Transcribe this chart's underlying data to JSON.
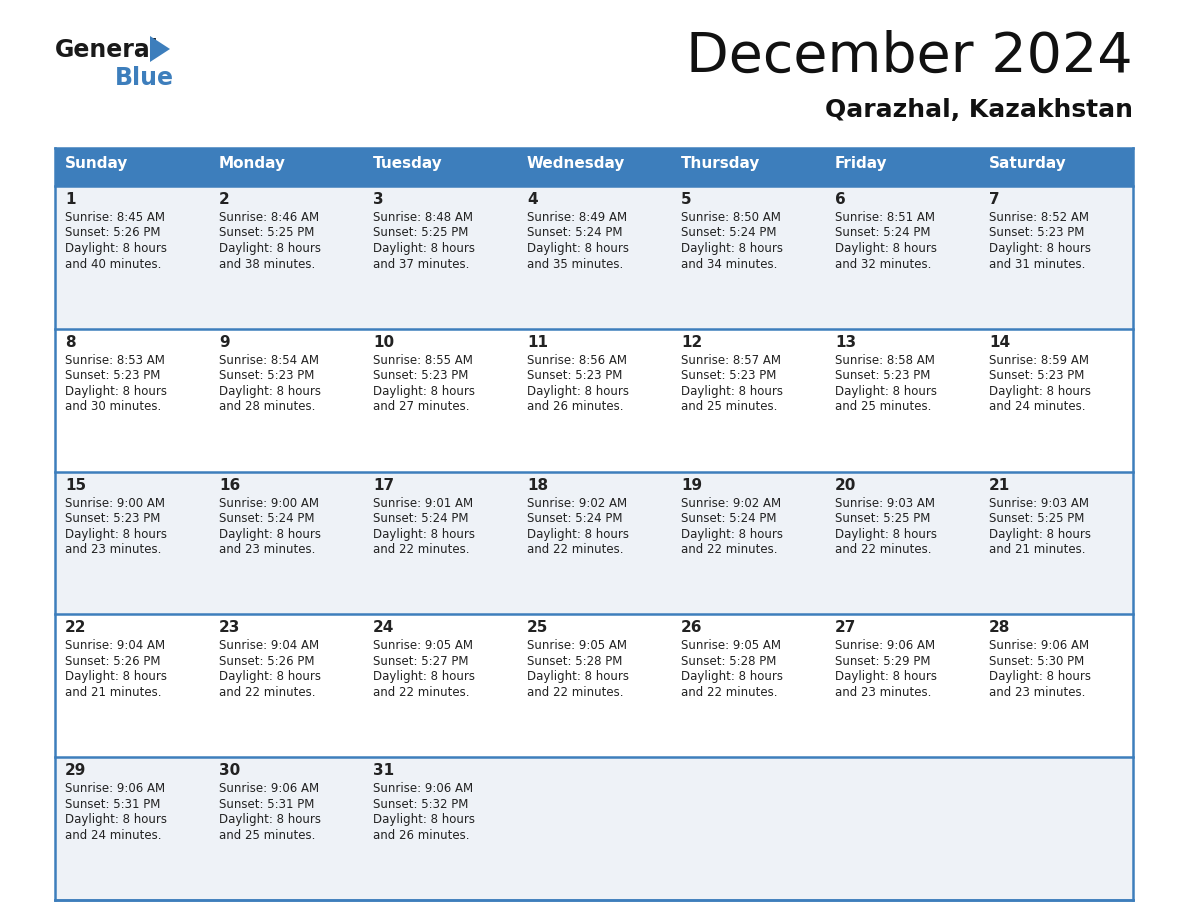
{
  "title": "December 2024",
  "subtitle": "Qarazhal, Kazakhstan",
  "header_color": "#3d7ebc",
  "header_text_color": "#ffffff",
  "cell_bg_light": "#eef2f7",
  "cell_bg_white": "#ffffff",
  "border_color": "#3d7ebc",
  "text_color": "#222222",
  "days_of_week": [
    "Sunday",
    "Monday",
    "Tuesday",
    "Wednesday",
    "Thursday",
    "Friday",
    "Saturday"
  ],
  "weeks": [
    [
      {
        "day": "1",
        "sunrise": "8:45 AM",
        "sunset": "5:26 PM",
        "daylight_hours": 8,
        "daylight_minutes": 40
      },
      {
        "day": "2",
        "sunrise": "8:46 AM",
        "sunset": "5:25 PM",
        "daylight_hours": 8,
        "daylight_minutes": 38
      },
      {
        "day": "3",
        "sunrise": "8:48 AM",
        "sunset": "5:25 PM",
        "daylight_hours": 8,
        "daylight_minutes": 37
      },
      {
        "day": "4",
        "sunrise": "8:49 AM",
        "sunset": "5:24 PM",
        "daylight_hours": 8,
        "daylight_minutes": 35
      },
      {
        "day": "5",
        "sunrise": "8:50 AM",
        "sunset": "5:24 PM",
        "daylight_hours": 8,
        "daylight_minutes": 34
      },
      {
        "day": "6",
        "sunrise": "8:51 AM",
        "sunset": "5:24 PM",
        "daylight_hours": 8,
        "daylight_minutes": 32
      },
      {
        "day": "7",
        "sunrise": "8:52 AM",
        "sunset": "5:23 PM",
        "daylight_hours": 8,
        "daylight_minutes": 31
      }
    ],
    [
      {
        "day": "8",
        "sunrise": "8:53 AM",
        "sunset": "5:23 PM",
        "daylight_hours": 8,
        "daylight_minutes": 30
      },
      {
        "day": "9",
        "sunrise": "8:54 AM",
        "sunset": "5:23 PM",
        "daylight_hours": 8,
        "daylight_minutes": 28
      },
      {
        "day": "10",
        "sunrise": "8:55 AM",
        "sunset": "5:23 PM",
        "daylight_hours": 8,
        "daylight_minutes": 27
      },
      {
        "day": "11",
        "sunrise": "8:56 AM",
        "sunset": "5:23 PM",
        "daylight_hours": 8,
        "daylight_minutes": 26
      },
      {
        "day": "12",
        "sunrise": "8:57 AM",
        "sunset": "5:23 PM",
        "daylight_hours": 8,
        "daylight_minutes": 25
      },
      {
        "day": "13",
        "sunrise": "8:58 AM",
        "sunset": "5:23 PM",
        "daylight_hours": 8,
        "daylight_minutes": 25
      },
      {
        "day": "14",
        "sunrise": "8:59 AM",
        "sunset": "5:23 PM",
        "daylight_hours": 8,
        "daylight_minutes": 24
      }
    ],
    [
      {
        "day": "15",
        "sunrise": "9:00 AM",
        "sunset": "5:23 PM",
        "daylight_hours": 8,
        "daylight_minutes": 23
      },
      {
        "day": "16",
        "sunrise": "9:00 AM",
        "sunset": "5:24 PM",
        "daylight_hours": 8,
        "daylight_minutes": 23
      },
      {
        "day": "17",
        "sunrise": "9:01 AM",
        "sunset": "5:24 PM",
        "daylight_hours": 8,
        "daylight_minutes": 22
      },
      {
        "day": "18",
        "sunrise": "9:02 AM",
        "sunset": "5:24 PM",
        "daylight_hours": 8,
        "daylight_minutes": 22
      },
      {
        "day": "19",
        "sunrise": "9:02 AM",
        "sunset": "5:24 PM",
        "daylight_hours": 8,
        "daylight_minutes": 22
      },
      {
        "day": "20",
        "sunrise": "9:03 AM",
        "sunset": "5:25 PM",
        "daylight_hours": 8,
        "daylight_minutes": 22
      },
      {
        "day": "21",
        "sunrise": "9:03 AM",
        "sunset": "5:25 PM",
        "daylight_hours": 8,
        "daylight_minutes": 21
      }
    ],
    [
      {
        "day": "22",
        "sunrise": "9:04 AM",
        "sunset": "5:26 PM",
        "daylight_hours": 8,
        "daylight_minutes": 21
      },
      {
        "day": "23",
        "sunrise": "9:04 AM",
        "sunset": "5:26 PM",
        "daylight_hours": 8,
        "daylight_minutes": 22
      },
      {
        "day": "24",
        "sunrise": "9:05 AM",
        "sunset": "5:27 PM",
        "daylight_hours": 8,
        "daylight_minutes": 22
      },
      {
        "day": "25",
        "sunrise": "9:05 AM",
        "sunset": "5:28 PM",
        "daylight_hours": 8,
        "daylight_minutes": 22
      },
      {
        "day": "26",
        "sunrise": "9:05 AM",
        "sunset": "5:28 PM",
        "daylight_hours": 8,
        "daylight_minutes": 22
      },
      {
        "day": "27",
        "sunrise": "9:06 AM",
        "sunset": "5:29 PM",
        "daylight_hours": 8,
        "daylight_minutes": 23
      },
      {
        "day": "28",
        "sunrise": "9:06 AM",
        "sunset": "5:30 PM",
        "daylight_hours": 8,
        "daylight_minutes": 23
      }
    ],
    [
      {
        "day": "29",
        "sunrise": "9:06 AM",
        "sunset": "5:31 PM",
        "daylight_hours": 8,
        "daylight_minutes": 24
      },
      {
        "day": "30",
        "sunrise": "9:06 AM",
        "sunset": "5:31 PM",
        "daylight_hours": 8,
        "daylight_minutes": 25
      },
      {
        "day": "31",
        "sunrise": "9:06 AM",
        "sunset": "5:32 PM",
        "daylight_hours": 8,
        "daylight_minutes": 26
      },
      null,
      null,
      null,
      null
    ]
  ]
}
